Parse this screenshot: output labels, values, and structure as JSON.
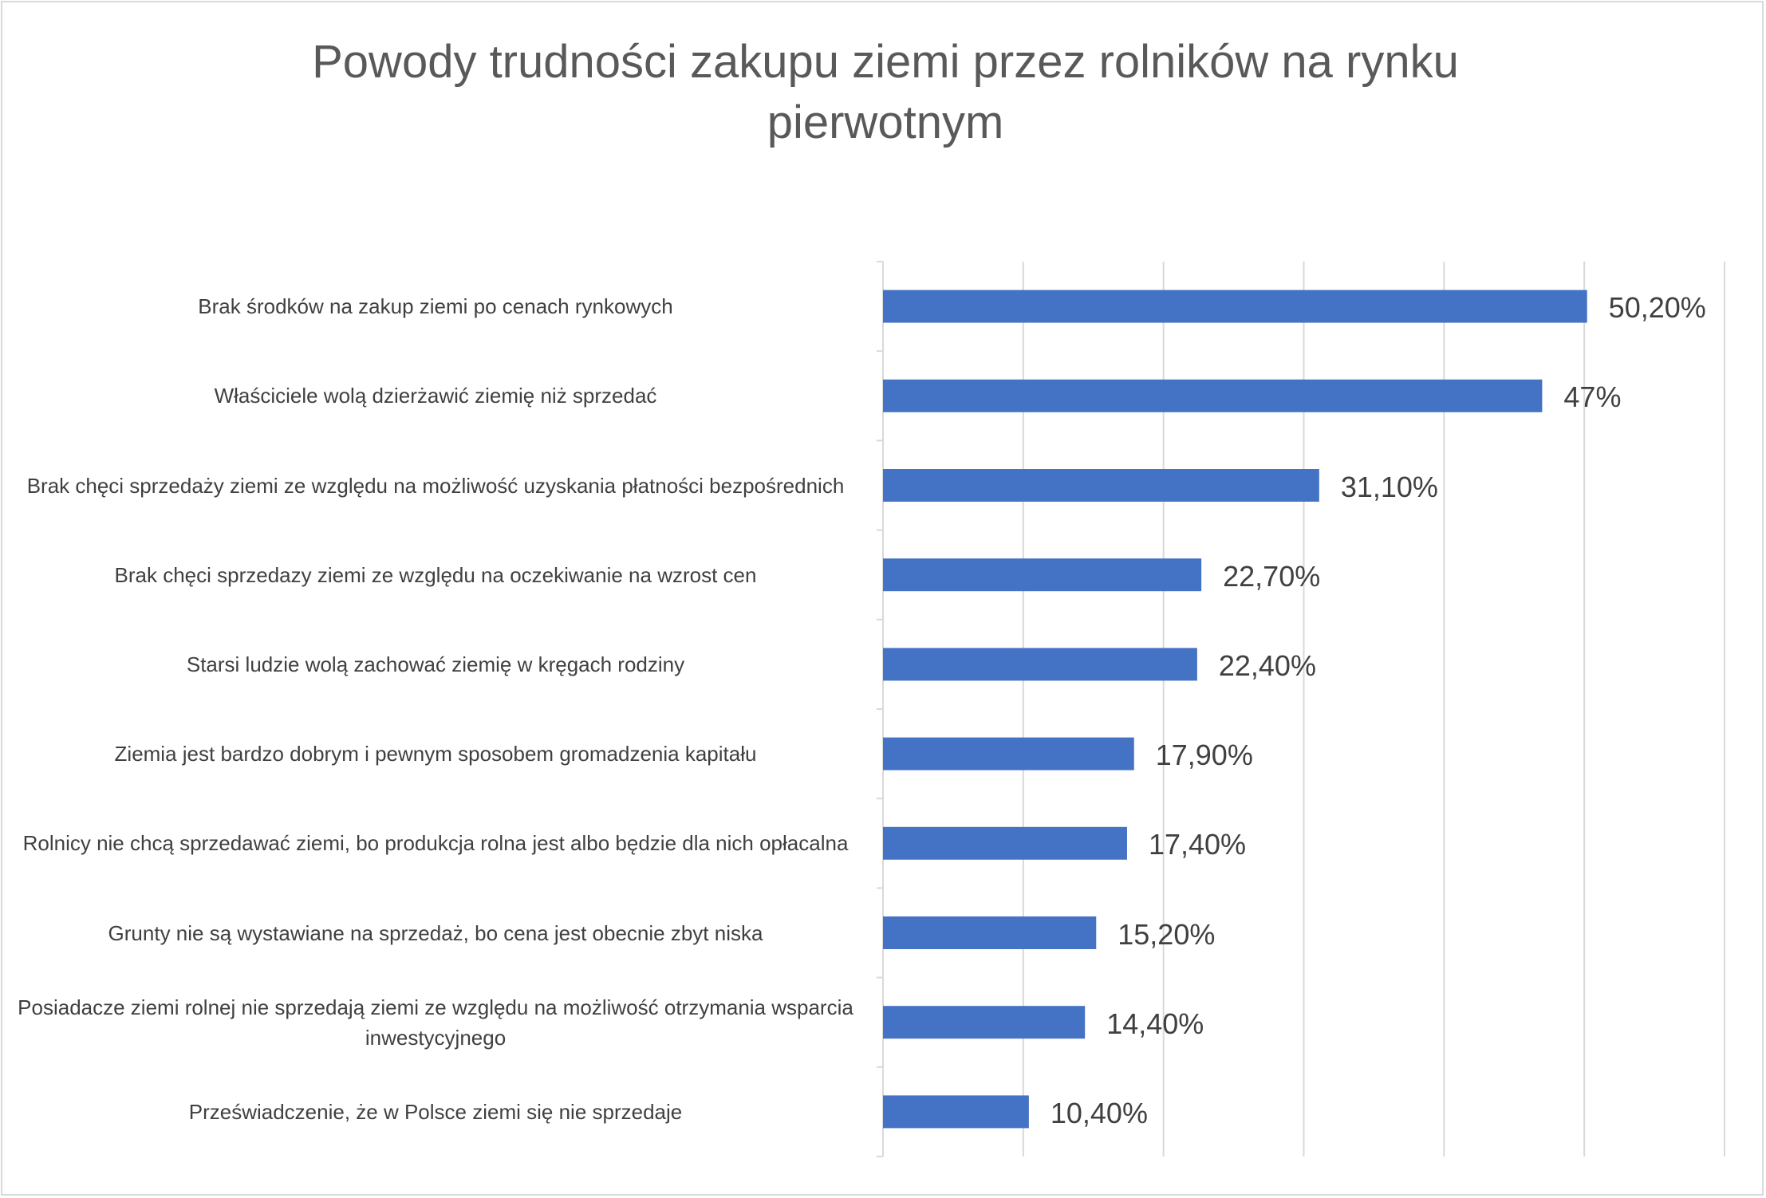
{
  "chart_data": {
    "type": "bar",
    "orientation": "horizontal",
    "title": "Powody trudności zakupu ziemi przez rolników na rynku pierwotnym",
    "categories": [
      "Brak środków na zakup ziemi po cenach rynkowych",
      "Właściciele wolą dzierżawić ziemię niż sprzedać",
      "Brak chęci sprzedaży ziemi ze względu na możliwość uzyskania płatności bezpośrednich",
      "Brak chęci sprzedazy ziemi ze względu na oczekiwanie na wzrost cen",
      "Starsi ludzie wolą zachować ziemię w kręgach rodziny",
      "Ziemia jest bardzo dobrym i pewnym sposobem gromadzenia kapitału",
      "Rolnicy nie chcą sprzedawać ziemi, bo produkcja rolna jest albo będzie dla nich opłacalna",
      "Grunty nie są wystawiane na sprzedaż, bo cena jest obecnie zbyt niska",
      "Posiadacze ziemi rolnej nie sprzedają ziemi ze względu na możliwość otrzymania wsparcia inwestycyjnego",
      "Przeświadczenie, że w Polsce ziemi się nie sprzedaje"
    ],
    "values": [
      50.2,
      47,
      31.1,
      22.7,
      22.4,
      17.9,
      17.4,
      15.2,
      14.4,
      10.4
    ],
    "data_labels": [
      "50,20%",
      "47%",
      "31,10%",
      "22,70%",
      "22,40%",
      "17,90%",
      "17,40%",
      "15,20%",
      "14,40%",
      "10,40%"
    ],
    "xlim": [
      0,
      60
    ],
    "grid": true,
    "legend": "none",
    "bar_color": "#4472c4"
  }
}
